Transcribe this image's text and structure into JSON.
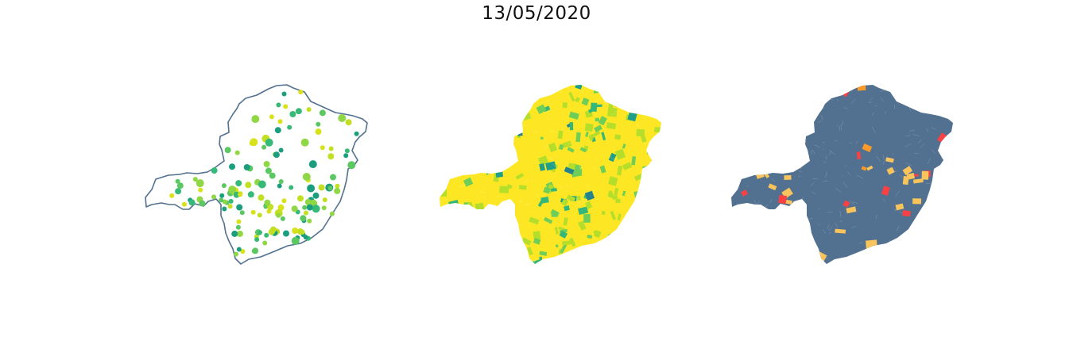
{
  "figure": {
    "title": "13/05/2020"
  },
  "maps": {
    "points_map": {
      "outline_color": "#52708f",
      "point_colors": [
        "#1a9e7e",
        "#37b978",
        "#5bc862",
        "#8fd744",
        "#c2df23",
        "#d8e219"
      ]
    },
    "choropleth_map": {
      "base_color": "#fde725",
      "scale_colors": [
        "#fde725",
        "#b5de2b",
        "#6ece58",
        "#35b779",
        "#1f9e89",
        "#26828e"
      ]
    },
    "risk_map": {
      "base_color": "#52708f",
      "category_colors": [
        "#52708f",
        "#f9c45c",
        "#fb9a29",
        "#f94144"
      ]
    }
  }
}
